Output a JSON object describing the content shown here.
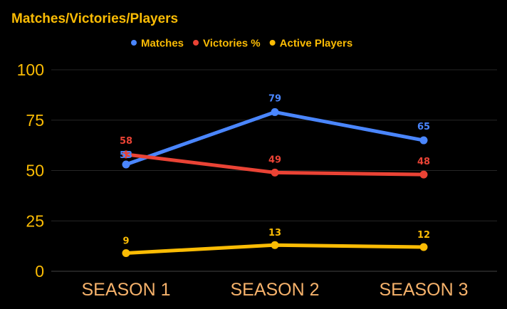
{
  "chart_data": {
    "type": "line",
    "title": "Matches/Victories/Players",
    "categories": [
      "SEASON 1",
      "SEASON 2",
      "SEASON 3"
    ],
    "series": [
      {
        "name": "Matches",
        "values": [
          53,
          79,
          65
        ],
        "color": "#4a86ff"
      },
      {
        "name": "Victories %",
        "values": [
          58,
          49,
          48
        ],
        "color": "#ea4335"
      },
      {
        "name": "Active Players",
        "values": [
          9,
          13,
          12
        ],
        "color": "#fbbc04"
      }
    ],
    "yticks": [
      "0",
      "25",
      "50",
      "75",
      "100"
    ],
    "ylim": [
      0,
      100
    ],
    "grid": true,
    "legend_position": "top-center",
    "colors": {
      "background": "#000000",
      "title": "#fbbc04",
      "axis_text": "#fbbc04",
      "category_text": "#f6b26b",
      "gridline": "#262626"
    }
  }
}
